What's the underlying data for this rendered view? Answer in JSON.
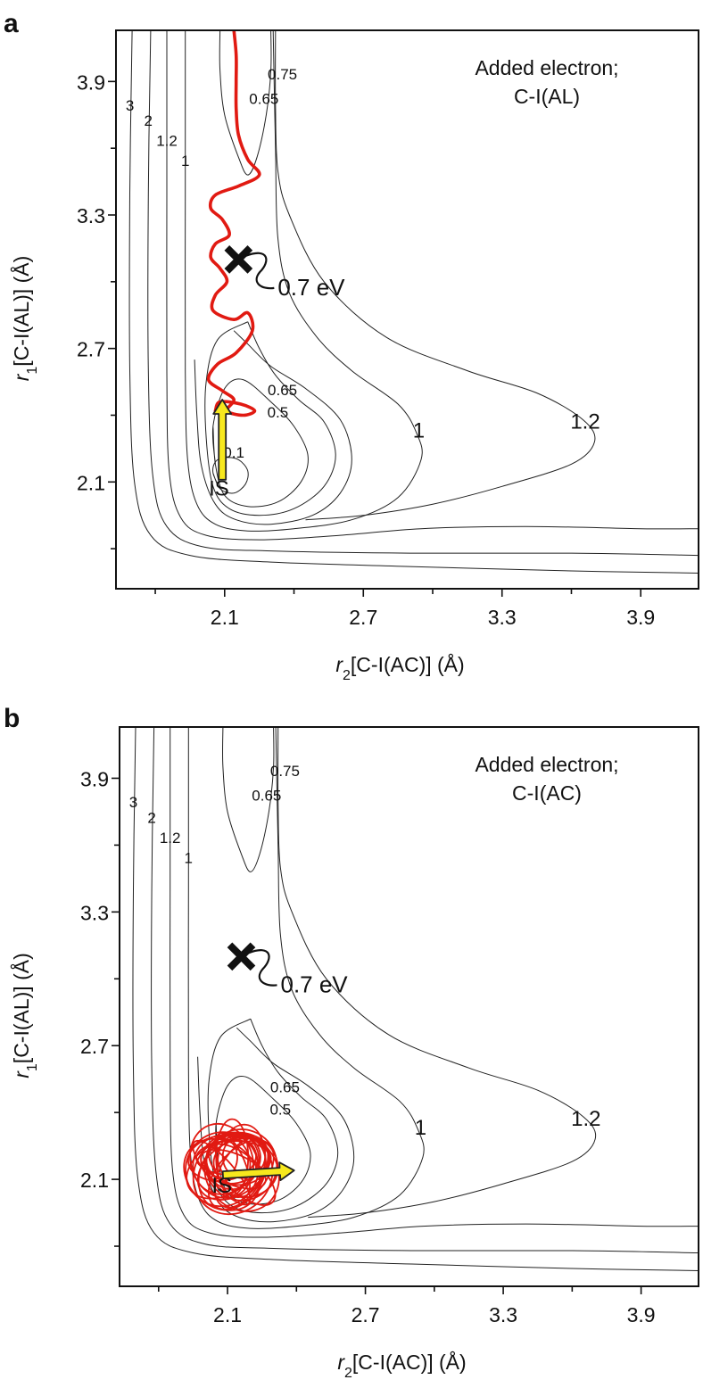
{
  "colors": {
    "trajectory": "#e11a12",
    "arrow_fill": "#f7e81d",
    "arrow_stroke": "#222222",
    "contour": "#222222"
  },
  "chart_data": [
    {
      "panel": "a",
      "type": "contour",
      "annotation": [
        "Added electron;",
        "C-I(AL)"
      ],
      "xlabel": {
        "var": "r",
        "sub": "2",
        "text": "[C-I(AC)] (Å)"
      },
      "ylabel": {
        "var": "r",
        "sub": "1",
        "text": "[C-I(AL)] (Å)"
      },
      "xlim": [
        1.63,
        4.15
      ],
      "ylim": [
        1.62,
        4.13
      ],
      "xticks": [
        "2.1",
        "2.7",
        "3.3",
        "3.9"
      ],
      "yticks": [
        "2.1",
        "2.7",
        "3.3",
        "3.9"
      ],
      "contour_levels": [
        "0.1",
        "0.5",
        "0.65",
        "0.75",
        "1",
        "1.2",
        "2",
        "3"
      ],
      "contour_labels": [
        {
          "text": "0.75",
          "x": 2.35,
          "y": 3.91,
          "size": "small"
        },
        {
          "text": "0.65",
          "x": 2.27,
          "y": 3.8,
          "size": "small"
        },
        {
          "text": "3",
          "x": 1.69,
          "y": 3.77,
          "size": "small"
        },
        {
          "text": "2",
          "x": 1.77,
          "y": 3.7,
          "size": "small"
        },
        {
          "text": "1.2",
          "x": 1.85,
          "y": 3.61,
          "size": "small"
        },
        {
          "text": "1",
          "x": 1.93,
          "y": 3.52,
          "size": "small"
        },
        {
          "text": "0.65",
          "x": 2.35,
          "y": 2.49,
          "size": "small"
        },
        {
          "text": "0.5",
          "x": 2.33,
          "y": 2.39,
          "size": "small"
        },
        {
          "text": "0.1",
          "x": 2.14,
          "y": 2.21,
          "size": "small"
        },
        {
          "text": "1",
          "x": 2.94,
          "y": 2.3,
          "size": "large"
        },
        {
          "text": "1.2",
          "x": 3.66,
          "y": 2.34,
          "size": "large"
        }
      ],
      "transition_state": {
        "label": "0.7 eV",
        "x": 2.16,
        "y": 3.1
      },
      "initial_state": {
        "label": "IS",
        "x": 2.06,
        "y": 2.04
      },
      "trajectory_kind": "ts_crossing",
      "trajectory": [
        [
          2.14,
          4.13
        ],
        [
          2.15,
          4.02
        ],
        [
          2.15,
          3.9
        ],
        [
          2.15,
          3.78
        ],
        [
          2.16,
          3.66
        ],
        [
          2.2,
          3.55
        ],
        [
          2.25,
          3.48
        ],
        [
          2.16,
          3.43
        ],
        [
          2.06,
          3.39
        ],
        [
          2.04,
          3.33
        ],
        [
          2.09,
          3.28
        ],
        [
          2.12,
          3.21
        ],
        [
          2.06,
          3.17
        ],
        [
          2.04,
          3.11
        ],
        [
          2.08,
          3.06
        ],
        [
          2.11,
          3.0
        ],
        [
          2.06,
          2.94
        ],
        [
          2.05,
          2.87
        ],
        [
          2.14,
          2.83
        ],
        [
          2.2,
          2.86
        ],
        [
          2.22,
          2.78
        ],
        [
          2.15,
          2.68
        ],
        [
          2.07,
          2.63
        ],
        [
          2.03,
          2.56
        ],
        [
          2.09,
          2.51
        ],
        [
          2.14,
          2.47
        ],
        [
          2.11,
          2.42
        ],
        [
          2.18,
          2.4
        ],
        [
          2.23,
          2.42
        ],
        [
          2.17,
          2.45
        ],
        [
          2.08,
          2.46
        ],
        [
          2.06,
          2.42
        ]
      ],
      "arrow": {
        "from": [
          2.09,
          2.11
        ],
        "to": [
          2.09,
          2.47
        ]
      }
    },
    {
      "panel": "b",
      "type": "contour",
      "annotation": [
        "Added electron;",
        "C-I(AC)"
      ],
      "xlabel": {
        "var": "r",
        "sub": "2",
        "text": "[C-I(AC)] (Å)"
      },
      "ylabel": {
        "var": "r",
        "sub": "1",
        "text": "[C-I(AL)] (Å)"
      },
      "xlim": [
        1.63,
        4.15
      ],
      "ylim": [
        1.62,
        4.13
      ],
      "xticks": [
        "2.1",
        "2.7",
        "3.3",
        "3.9"
      ],
      "yticks": [
        "2.1",
        "2.7",
        "3.3",
        "3.9"
      ],
      "contour_levels": [
        "0.5",
        "0.65",
        "0.75",
        "1",
        "1.2",
        "2",
        "3"
      ],
      "contour_labels": [
        {
          "text": "0.75",
          "x": 2.35,
          "y": 3.91,
          "size": "small"
        },
        {
          "text": "0.65",
          "x": 2.27,
          "y": 3.8,
          "size": "small"
        },
        {
          "text": "3",
          "x": 1.69,
          "y": 3.77,
          "size": "small"
        },
        {
          "text": "2",
          "x": 1.77,
          "y": 3.7,
          "size": "small"
        },
        {
          "text": "1.2",
          "x": 1.85,
          "y": 3.61,
          "size": "small"
        },
        {
          "text": "1",
          "x": 1.93,
          "y": 3.52,
          "size": "small"
        },
        {
          "text": "0.65",
          "x": 2.35,
          "y": 2.49,
          "size": "small"
        },
        {
          "text": "0.5",
          "x": 2.33,
          "y": 2.39,
          "size": "small"
        },
        {
          "text": "1",
          "x": 2.94,
          "y": 2.3,
          "size": "large"
        },
        {
          "text": "1.2",
          "x": 3.66,
          "y": 2.34,
          "size": "large"
        }
      ],
      "transition_state": {
        "label": "0.7 eV",
        "x": 2.16,
        "y": 3.1
      },
      "initial_state": {
        "label": "IS",
        "x": 2.06,
        "y": 2.04
      },
      "trajectory_kind": "trapped",
      "arrow": {
        "from": [
          2.08,
          2.12
        ],
        "to": [
          2.39,
          2.14
        ]
      }
    }
  ]
}
